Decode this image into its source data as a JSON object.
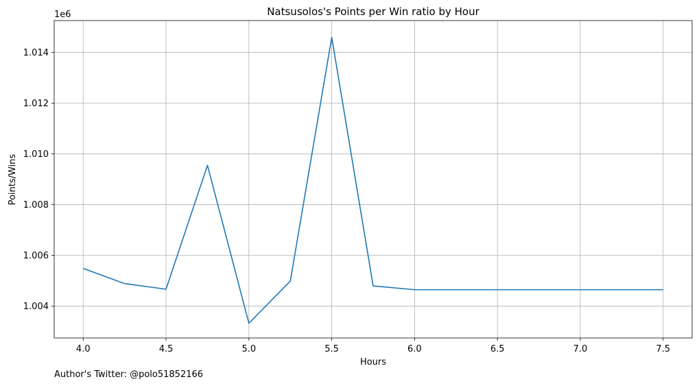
{
  "chart_data": {
    "type": "line",
    "title": "Natsusolos's Points per Win ratio by Hour",
    "xlabel": "Hours",
    "ylabel": "Points/Wins",
    "y_offset_label": "1e6",
    "xlim": [
      3.825,
      7.675
    ],
    "ylim": [
      1.00275,
      1.01525
    ],
    "xticks": [
      4.0,
      4.5,
      5.0,
      5.5,
      6.0,
      6.5,
      7.0,
      7.5
    ],
    "xtick_labels": [
      "4.0",
      "4.5",
      "5.0",
      "5.5",
      "6.0",
      "6.5",
      "7.0",
      "7.5"
    ],
    "yticks": [
      1.004,
      1.006,
      1.008,
      1.01,
      1.012,
      1.014
    ],
    "ytick_labels": [
      "1.004",
      "1.006",
      "1.008",
      "1.010",
      "1.012",
      "1.014"
    ],
    "grid": true,
    "line_color": "#1f77b4",
    "series": [
      {
        "x": [
          4.0,
          4.25,
          4.5,
          4.75,
          5.0,
          5.25,
          5.5,
          5.75,
          6.0,
          6.25,
          6.5,
          6.75,
          7.0,
          7.25,
          7.5
        ],
        "values": [
          1.00549,
          1.00489,
          1.00467,
          1.00955,
          1.00333,
          1.00499,
          1.01459,
          1.0048,
          1.00465,
          1.00465,
          1.00465,
          1.00465,
          1.00465,
          1.00465,
          1.00465
        ]
      }
    ]
  },
  "footer": {
    "text": "Author's Twitter: @polo51852166"
  }
}
